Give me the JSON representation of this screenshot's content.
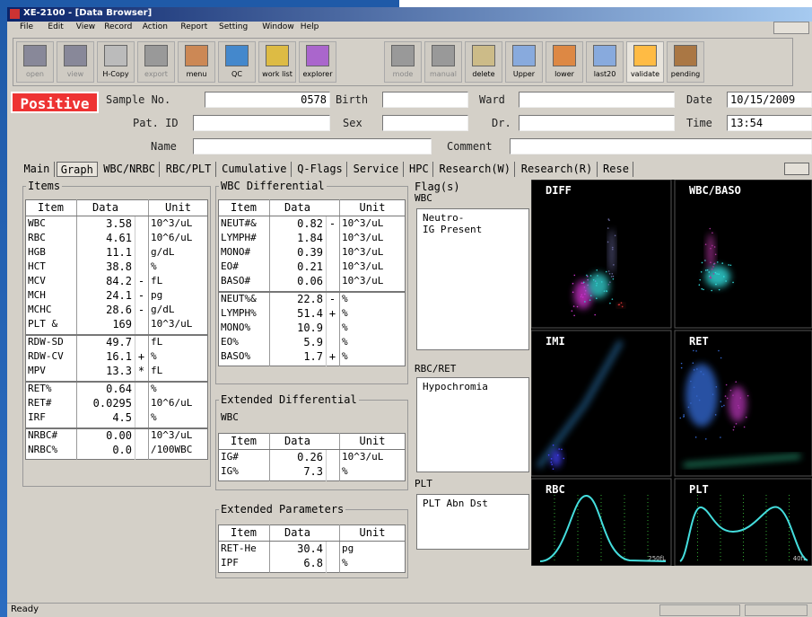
{
  "window": {
    "title": "XE-2100 - [Data Browser]"
  },
  "menu": [
    "File",
    "Edit",
    "View",
    "Record",
    "Action",
    "Report",
    "Setting",
    "Window",
    "Help"
  ],
  "toolbar": [
    "open",
    "view",
    "H-Copy",
    "export",
    "menu",
    "QC",
    "work list",
    "explorer",
    "mode",
    "manual",
    "delete",
    "Upper",
    "lower",
    "last20",
    "validate",
    "pending"
  ],
  "header": {
    "status": "Positive",
    "sample_no_label": "Sample No.",
    "sample_no": "0578",
    "birth_label": "Birth",
    "ward_label": "Ward",
    "date_label": "Date",
    "date": "10/15/2009",
    "pat_id_label": "Pat. ID",
    "sex_label": "Sex",
    "dr_label": "Dr.",
    "time_label": "Time",
    "time": "13:54",
    "name_label": "Name",
    "comment_label": "Comment"
  },
  "tabs": [
    "Main",
    "Graph",
    "WBC/NRBC",
    "RBC/PLT",
    "Cumulative",
    "Q-Flags",
    "Service",
    "HPC",
    "Research(W)",
    "Research(R)",
    "Rese"
  ],
  "items": {
    "title": "Items",
    "columns": [
      "Item",
      "Data",
      "Unit"
    ],
    "groups": [
      [
        {
          "item": "WBC",
          "data": "3.58",
          "unit": "10^3/uL"
        },
        {
          "item": "RBC",
          "data": "4.61",
          "unit": "10^6/uL"
        },
        {
          "item": "HGB",
          "data": "11.1",
          "unit": "g/dL"
        },
        {
          "item": "HCT",
          "data": "38.8",
          "unit": "%"
        },
        {
          "item": "MCV",
          "data": "84.2",
          "flag": "-",
          "unit": "fL"
        },
        {
          "item": "MCH",
          "data": "24.1",
          "flag": "-",
          "unit": "pg"
        },
        {
          "item": "MCHC",
          "data": "28.6",
          "flag": "-",
          "unit": "g/dL"
        },
        {
          "item": "PLT  &",
          "data": "169",
          "unit": "10^3/uL"
        }
      ],
      [
        {
          "item": "RDW-SD",
          "data": "49.7",
          "unit": "fL"
        },
        {
          "item": "RDW-CV",
          "data": "16.1",
          "flag": "+",
          "unit": "%"
        },
        {
          "item": "MPV",
          "data": "13.3",
          "flag": "*",
          "unit": "fL"
        }
      ],
      [
        {
          "item": "RET%",
          "data": "0.64",
          "unit": "%"
        },
        {
          "item": "RET#",
          "data": "0.0295",
          "unit": "10^6/uL"
        },
        {
          "item": "IRF",
          "data": "4.5",
          "unit": "%"
        }
      ],
      [
        {
          "item": "NRBC#",
          "data": "0.00",
          "unit": "10^3/uL"
        },
        {
          "item": "NRBC%",
          "data": "0.0",
          "unit": "/100WBC"
        }
      ]
    ]
  },
  "wbc_differential": {
    "title": "WBC Differential",
    "columns": [
      "Item",
      "Data",
      "Unit"
    ],
    "groups": [
      [
        {
          "item": "NEUT#&",
          "data": "0.82",
          "flag": "-",
          "unit": "10^3/uL"
        },
        {
          "item": "LYMPH#",
          "data": "1.84",
          "unit": "10^3/uL"
        },
        {
          "item": "MONO#",
          "data": "0.39",
          "unit": "10^3/uL"
        },
        {
          "item": "EO#",
          "data": "0.21",
          "unit": "10^3/uL"
        },
        {
          "item": "BASO#",
          "data": "0.06",
          "unit": "10^3/uL"
        }
      ],
      [
        {
          "item": "NEUT%&",
          "data": "22.8",
          "flag": "-",
          "unit": "%"
        },
        {
          "item": "LYMPH%",
          "data": "51.4",
          "flag": "+",
          "unit": "%"
        },
        {
          "item": "MONO%",
          "data": "10.9",
          "unit": "%"
        },
        {
          "item": "EO%",
          "data": "5.9",
          "unit": "%"
        },
        {
          "item": "BASO%",
          "data": "1.7",
          "flag": "+",
          "unit": "%"
        }
      ]
    ]
  },
  "extended_differential": {
    "title": "Extended Differential",
    "subtitle": "WBC",
    "columns": [
      "Item",
      "Data",
      "Unit"
    ],
    "groups": [
      [
        {
          "item": "IG#",
          "data": "0.26",
          "unit": "10^3/uL"
        },
        {
          "item": "IG%",
          "data": "7.3",
          "unit": "%"
        }
      ]
    ]
  },
  "extended_parameters": {
    "title": "Extended Parameters",
    "columns": [
      "Item",
      "Data",
      "Unit"
    ],
    "groups": [
      [
        {
          "item": "RET-He",
          "data": "30.4",
          "unit": "pg"
        },
        {
          "item": "IPF",
          "data": "6.8",
          "unit": "%"
        }
      ]
    ]
  },
  "flags": {
    "title": "Flag(s)",
    "sections": [
      {
        "name": "WBC",
        "lines": [
          "Neutro-",
          "IG Present"
        ]
      },
      {
        "name": "RBC/RET",
        "lines": [
          "Hypochromia"
        ]
      },
      {
        "name": "PLT",
        "lines": [
          "PLT Abn Dst"
        ]
      }
    ]
  },
  "plots": [
    {
      "title": "DIFF"
    },
    {
      "title": "WBC/BASO"
    },
    {
      "title": "IMI"
    },
    {
      "title": "RET"
    },
    {
      "title": "RBC",
      "scale": "250fL"
    },
    {
      "title": "PLT",
      "scale": "40fL"
    }
  ],
  "status_bar": "Ready"
}
